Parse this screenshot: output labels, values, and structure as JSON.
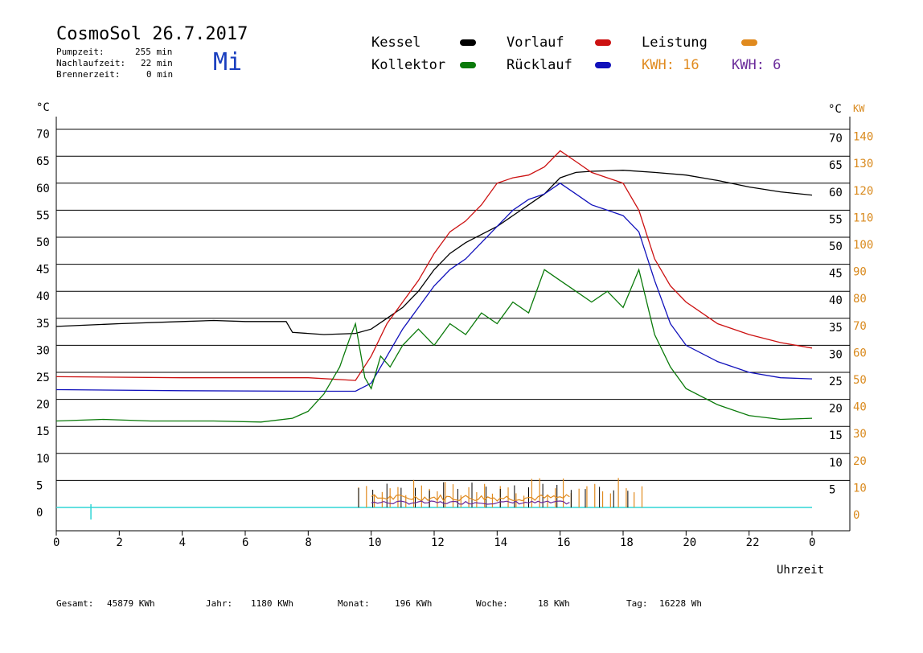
{
  "header": {
    "title": "CosmoSol 26.7.2017",
    "weekday": "Mi",
    "pumpzeit_label": "Pumpzeit:",
    "pumpzeit_value": "255 min",
    "nachlauf_label": "Nachlaufzeit:",
    "nachlauf_value": "22 min",
    "brenner_label": "Brennerzeit:",
    "brenner_value": "0 min"
  },
  "legend": {
    "kessel": "Kessel",
    "kollektor": "Kollektor",
    "vorlauf": "Vorlauf",
    "ruecklauf": "Rücklauf",
    "leistung": "Leistung",
    "kwh_orange": "KWH: 16",
    "kwh_purple": "KWH: 6"
  },
  "colors": {
    "kessel": "#000000",
    "kollektor": "#0a7a0a",
    "vorlauf": "#cc1111",
    "ruecklauf": "#1111bb",
    "leistung": "#e08a1e",
    "kwh_purple": "#6a2a9a",
    "baseline": "#30d5d5",
    "weekday": "#1a3fbf"
  },
  "axes": {
    "left_unit": "°C",
    "right_unit": "°C",
    "right2_unit": "KW",
    "xlabel": "Uhrzeit"
  },
  "footer": {
    "gesamt_label": "Gesamt:",
    "gesamt_value": "45879 KWh",
    "jahr_label": "Jahr:",
    "jahr_value": "1180 KWh",
    "monat_label": "Monat:",
    "monat_value": "196 KWh",
    "woche_label": "Woche:",
    "woche_value": "18 KWh",
    "tag_label": "Tag:",
    "tag_value": "16228 Wh"
  },
  "chart_data": {
    "type": "line",
    "xlabel": "Uhrzeit",
    "ylabel": "°C",
    "y2label": "KW",
    "xlim": [
      0,
      24
    ],
    "ylim": [
      -3,
      73
    ],
    "x_ticks": [
      "0",
      "2",
      "4",
      "6",
      "8",
      "10",
      "12",
      "14",
      "16",
      "18",
      "20",
      "22",
      "0"
    ],
    "y_ticks": [
      0,
      5,
      10,
      15,
      20,
      25,
      30,
      35,
      40,
      45,
      50,
      55,
      60,
      65,
      70
    ],
    "y2_ticks": [
      "0",
      "10",
      "20",
      "30",
      "40",
      "50",
      "60",
      "70",
      "80",
      "90",
      "100",
      "110",
      "120",
      "130",
      "140"
    ],
    "grid": true,
    "legend_position": "top",
    "series": [
      {
        "name": "Kessel",
        "color": "#000000",
        "points": [
          [
            0,
            33.5
          ],
          [
            2,
            34
          ],
          [
            4,
            34.4
          ],
          [
            5,
            34.6
          ],
          [
            6,
            34.4
          ],
          [
            7.3,
            34.4
          ],
          [
            7.5,
            32.4
          ],
          [
            8.5,
            32
          ],
          [
            9.5,
            32.2
          ],
          [
            10,
            33
          ],
          [
            10.5,
            35
          ],
          [
            11,
            37
          ],
          [
            11.5,
            40
          ],
          [
            12,
            44
          ],
          [
            12.5,
            47
          ],
          [
            13,
            49
          ],
          [
            13.5,
            50.5
          ],
          [
            14,
            52
          ],
          [
            14.5,
            54
          ],
          [
            15,
            56
          ],
          [
            15.5,
            58
          ],
          [
            16,
            61
          ],
          [
            16.5,
            62
          ],
          [
            17,
            62.2
          ],
          [
            18,
            62.4
          ],
          [
            19,
            62
          ],
          [
            20,
            61.5
          ],
          [
            21,
            60.5
          ],
          [
            22,
            59.3
          ],
          [
            23,
            58.4
          ],
          [
            24,
            57.8
          ]
        ]
      },
      {
        "name": "Vorlauf",
        "color": "#cc1111",
        "points": [
          [
            0,
            24.2
          ],
          [
            4,
            24
          ],
          [
            8,
            24
          ],
          [
            9.5,
            23.5
          ],
          [
            10,
            28
          ],
          [
            10.5,
            34
          ],
          [
            11,
            38
          ],
          [
            11.5,
            42
          ],
          [
            12,
            47
          ],
          [
            12.5,
            51
          ],
          [
            13,
            53
          ],
          [
            13.5,
            56
          ],
          [
            14,
            60
          ],
          [
            14.5,
            61
          ],
          [
            15,
            61.5
          ],
          [
            15.5,
            63
          ],
          [
            16,
            66
          ],
          [
            16.5,
            64
          ],
          [
            17,
            62
          ],
          [
            17.5,
            61
          ],
          [
            18,
            60
          ],
          [
            18.5,
            55
          ],
          [
            19,
            46
          ],
          [
            19.5,
            41
          ],
          [
            20,
            38
          ],
          [
            21,
            34
          ],
          [
            22,
            32
          ],
          [
            23,
            30.5
          ],
          [
            24,
            29.5
          ]
        ]
      },
      {
        "name": "Rücklauf",
        "color": "#1111bb",
        "points": [
          [
            0,
            21.8
          ],
          [
            4,
            21.6
          ],
          [
            8,
            21.5
          ],
          [
            9.5,
            21.5
          ],
          [
            10,
            23
          ],
          [
            10.5,
            28
          ],
          [
            11,
            33
          ],
          [
            11.5,
            37
          ],
          [
            12,
            41
          ],
          [
            12.5,
            44
          ],
          [
            13,
            46
          ],
          [
            13.5,
            49
          ],
          [
            14,
            52
          ],
          [
            14.5,
            55
          ],
          [
            15,
            57
          ],
          [
            15.5,
            58
          ],
          [
            16,
            60
          ],
          [
            16.5,
            58
          ],
          [
            17,
            56
          ],
          [
            17.5,
            55
          ],
          [
            18,
            54
          ],
          [
            18.5,
            51
          ],
          [
            19,
            42
          ],
          [
            19.5,
            34
          ],
          [
            20,
            30
          ],
          [
            21,
            27
          ],
          [
            22,
            25
          ],
          [
            23,
            24
          ],
          [
            24,
            23.8
          ]
        ]
      },
      {
        "name": "Kollektor",
        "color": "#0a7a0a",
        "points": [
          [
            0,
            16
          ],
          [
            1.5,
            16.3
          ],
          [
            3,
            16
          ],
          [
            5,
            16
          ],
          [
            6.5,
            15.8
          ],
          [
            7.5,
            16.5
          ],
          [
            8,
            17.8
          ],
          [
            8.5,
            21
          ],
          [
            9,
            26
          ],
          [
            9.3,
            31
          ],
          [
            9.5,
            34
          ],
          [
            9.8,
            24
          ],
          [
            10,
            22
          ],
          [
            10.3,
            28
          ],
          [
            10.6,
            26
          ],
          [
            11,
            30
          ],
          [
            11.5,
            33
          ],
          [
            12,
            30
          ],
          [
            12.5,
            34
          ],
          [
            13,
            32
          ],
          [
            13.5,
            36
          ],
          [
            14,
            34
          ],
          [
            14.5,
            38
          ],
          [
            15,
            36
          ],
          [
            15.5,
            44
          ],
          [
            16,
            42
          ],
          [
            16.5,
            40
          ],
          [
            17,
            38
          ],
          [
            17.5,
            40
          ],
          [
            18,
            37
          ],
          [
            18.5,
            44
          ],
          [
            19,
            32
          ],
          [
            19.5,
            26
          ],
          [
            20,
            22
          ],
          [
            21,
            19
          ],
          [
            22,
            17
          ],
          [
            23,
            16.3
          ],
          [
            24,
            16.5
          ]
        ]
      }
    ]
  }
}
